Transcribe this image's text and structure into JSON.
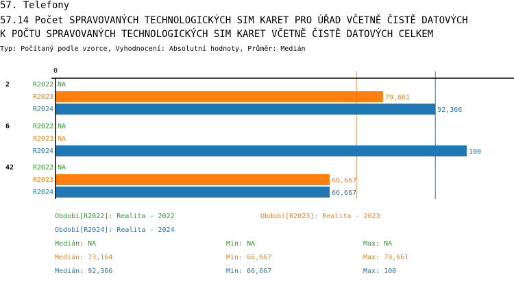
{
  "header": {
    "section": "57. Telefony",
    "title_line1": "57.14 Počet SPRAVOVANÝCH TECHNOLOGICKÝCH SIM KARET PRO ÚŘAD VČETNĚ ČISTĚ DATOVÝCH",
    "title_line2": " K POČTU SPRAVOVANÝCH TECHNOLOGICKÝCH SIM KARET VČETNĚ ČISTĚ DATOVÝCH CELKEM",
    "subtitle": "Typ: Počítaný podle vzorce, Vyhodnocení: Absolutní hodnoty, Průměr: Medián"
  },
  "chart_data": {
    "type": "bar",
    "orientation": "horizontal",
    "axis_tick": "0",
    "xlim": [
      0,
      100
    ],
    "colors": {
      "R2022": "#2ca02c",
      "R2023": "#ff7f0e",
      "R2024": "#1f77b4"
    },
    "groups": [
      {
        "label": "2",
        "bars": [
          {
            "series": "R2022",
            "value": null,
            "label": "NA"
          },
          {
            "series": "R2023",
            "value": 79.661,
            "label": "79,661"
          },
          {
            "series": "R2024",
            "value": 92.366,
            "label": "92,366"
          }
        ]
      },
      {
        "label": "6",
        "bars": [
          {
            "series": "R2022",
            "value": null,
            "label": "NA"
          },
          {
            "series": "R2023",
            "value": null,
            "label": "NA"
          },
          {
            "series": "R2024",
            "value": 100,
            "label": "100"
          }
        ]
      },
      {
        "label": "42",
        "bars": [
          {
            "series": "R2022",
            "value": null,
            "label": "NA"
          },
          {
            "series": "R2023",
            "value": 66.667,
            "label": "66,667"
          },
          {
            "series": "R2024",
            "value": 66.667,
            "label": "66,667"
          }
        ]
      }
    ],
    "median_lines": [
      {
        "series": "R2023",
        "value": 73.164
      },
      {
        "series": "R2024",
        "value": 92.366
      }
    ]
  },
  "legend": {
    "r2022": "Období[R2022]: Realita - 2022",
    "r2023": "Období[R2023]: Realita - 2023",
    "r2024": "Období[R2024]: Realita - 2024"
  },
  "stats": [
    {
      "series": "R2022",
      "median": "Medián: NA",
      "min": "Min: NA",
      "max": "Max: NA"
    },
    {
      "series": "R2023",
      "median": "Medián: 73,164",
      "min": "Min: 66,667",
      "max": "Max: 79,661"
    },
    {
      "series": "R2024",
      "median": "Medián: 92,366",
      "min": "Min: 66,667",
      "max": "Max: 100"
    }
  ]
}
